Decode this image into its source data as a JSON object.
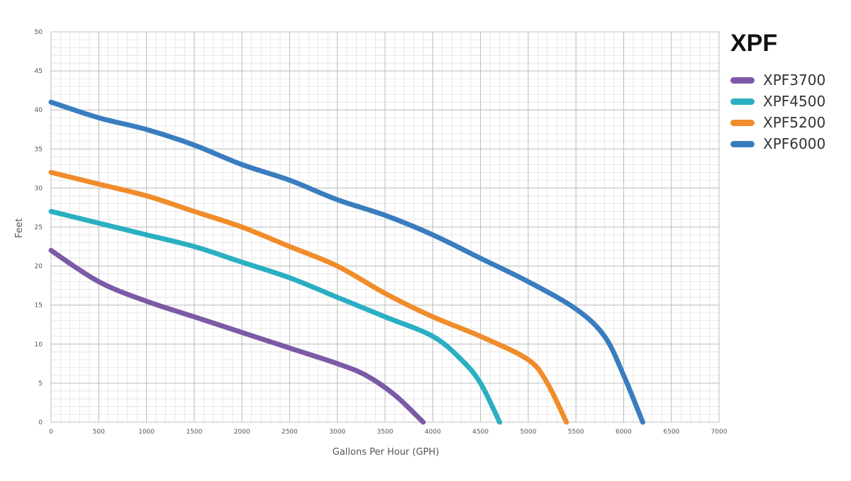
{
  "chart_data": {
    "type": "line",
    "title": "XPF",
    "xlabel": "Gallons Per Hour (GPH)",
    "ylabel": "Feet",
    "xlim": [
      0,
      7000
    ],
    "ylim": [
      0,
      50
    ],
    "x_major_ticks": [
      0,
      500,
      1000,
      1500,
      2000,
      2500,
      3000,
      3500,
      4000,
      4500,
      5000,
      5500,
      6000,
      6500,
      7000
    ],
    "y_major_ticks": [
      0,
      5,
      10,
      15,
      20,
      25,
      30,
      35,
      40,
      45,
      50
    ],
    "x_minor_step": 100,
    "y_minor_step": 1,
    "grid": true,
    "legend_position": "right",
    "series": [
      {
        "name": "XPF3700",
        "color": "#7B5AA6",
        "x": [
          0,
          500,
          1000,
          1500,
          2000,
          2500,
          3000,
          3300,
          3600,
          3900
        ],
        "y": [
          22,
          18,
          15.5,
          13.5,
          11.5,
          9.5,
          7.5,
          6,
          3.5,
          0
        ]
      },
      {
        "name": "XPF4500",
        "color": "#2AAFC2",
        "x": [
          0,
          500,
          1000,
          1500,
          2000,
          2500,
          3000,
          3500,
          4000,
          4300,
          4500,
          4700
        ],
        "y": [
          27,
          25.5,
          24,
          22.5,
          20.5,
          18.5,
          16,
          13.5,
          11,
          8,
          5,
          0
        ]
      },
      {
        "name": "XPF5200",
        "color": "#F08C2A",
        "x": [
          0,
          500,
          1000,
          1500,
          2000,
          2500,
          3000,
          3500,
          4000,
          4500,
          5000,
          5200,
          5400
        ],
        "y": [
          32,
          30.5,
          29,
          27,
          25,
          22.5,
          20,
          16.5,
          13.5,
          11,
          8,
          5,
          0
        ]
      },
      {
        "name": "XPF6000",
        "color": "#3A7DBF",
        "x": [
          0,
          500,
          1000,
          1500,
          2000,
          2500,
          3000,
          3500,
          4000,
          4500,
          5000,
          5500,
          5800,
          6000,
          6200
        ],
        "y": [
          41,
          39,
          37.5,
          35.5,
          33,
          31,
          28.5,
          26.5,
          24,
          21,
          18,
          14.5,
          11,
          6,
          0
        ]
      }
    ]
  }
}
